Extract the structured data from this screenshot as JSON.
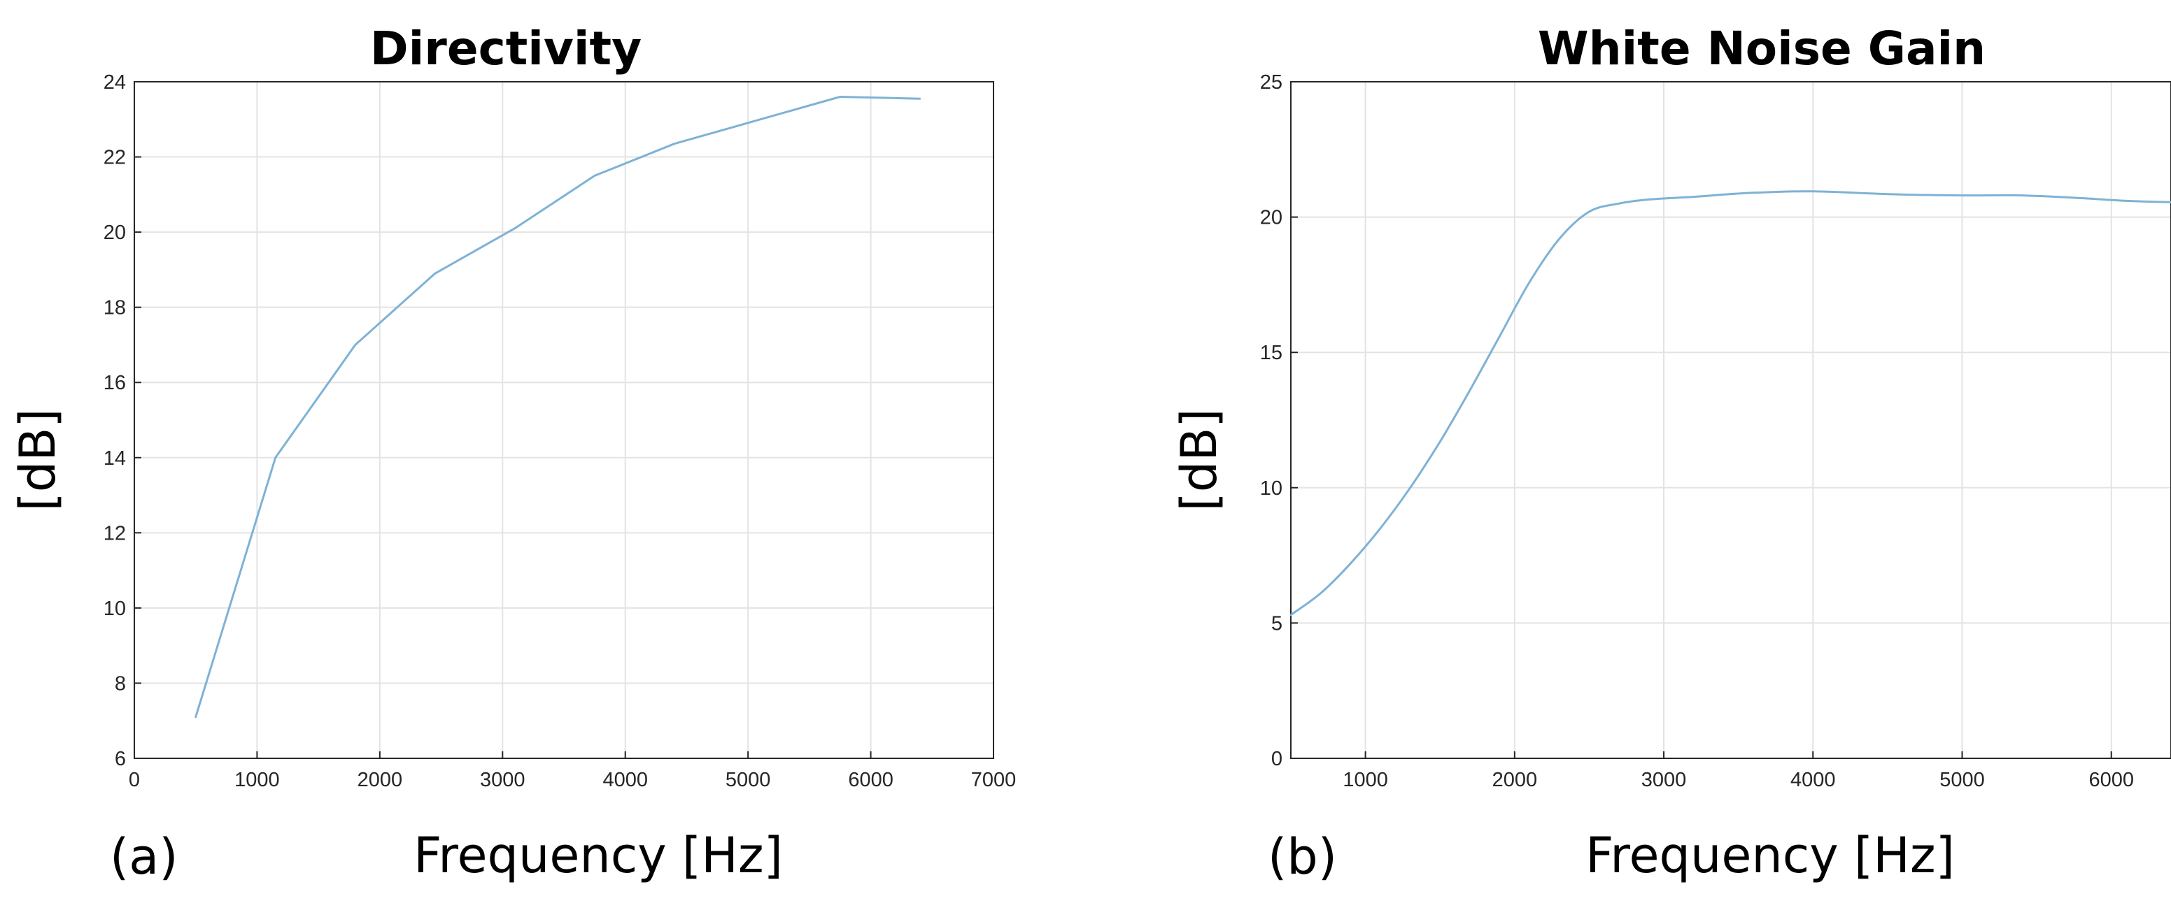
{
  "colors": {
    "series": "#7fb2d5",
    "grid": "#e3e3e3",
    "axis": "#262626",
    "background": "#ffffff"
  },
  "chart_data": [
    {
      "id": "directivity",
      "type": "line",
      "panel_label": "(a)",
      "title": "Directivity",
      "xlabel": "Frequency [Hz]",
      "ylabel": "[dB]",
      "xlim": [
        0,
        7000
      ],
      "ylim": [
        6,
        24
      ],
      "xticks": [
        0,
        1000,
        2000,
        3000,
        4000,
        5000,
        6000,
        7000
      ],
      "yticks": [
        6,
        8,
        10,
        12,
        14,
        16,
        18,
        20,
        22,
        24
      ],
      "grid": true,
      "smooth": false,
      "series": [
        {
          "name": "Directivity",
          "x": [
            500,
            1150,
            1800,
            2450,
            3100,
            3750,
            4400,
            5100,
            5750,
            6400
          ],
          "y": [
            7.1,
            14.0,
            17.0,
            18.9,
            20.1,
            21.5,
            22.35,
            23.0,
            23.6,
            23.55
          ]
        }
      ]
    },
    {
      "id": "white-noise-gain",
      "type": "line",
      "panel_label": "(b)",
      "title": "White Noise Gain",
      "xlabel": "Frequency [Hz]",
      "ylabel": "[dB]",
      "xlim": [
        500,
        6400
      ],
      "ylim": [
        0,
        25
      ],
      "xticks": [
        1000,
        2000,
        3000,
        4000,
        5000,
        6000
      ],
      "yticks": [
        0,
        5,
        10,
        15,
        20,
        25
      ],
      "grid": true,
      "smooth": true,
      "series": [
        {
          "name": "White Noise Gain",
          "x": [
            500,
            700,
            900,
            1100,
            1300,
            1500,
            1700,
            1900,
            2100,
            2300,
            2500,
            2700,
            2900,
            3200,
            3600,
            4000,
            4500,
            5000,
            5400,
            5800,
            6100,
            6400
          ],
          "y": [
            5.3,
            6.1,
            7.2,
            8.5,
            10.0,
            11.7,
            13.6,
            15.6,
            17.6,
            19.2,
            20.2,
            20.5,
            20.65,
            20.75,
            20.9,
            20.95,
            20.85,
            20.8,
            20.8,
            20.7,
            20.6,
            20.55
          ]
        }
      ]
    }
  ]
}
